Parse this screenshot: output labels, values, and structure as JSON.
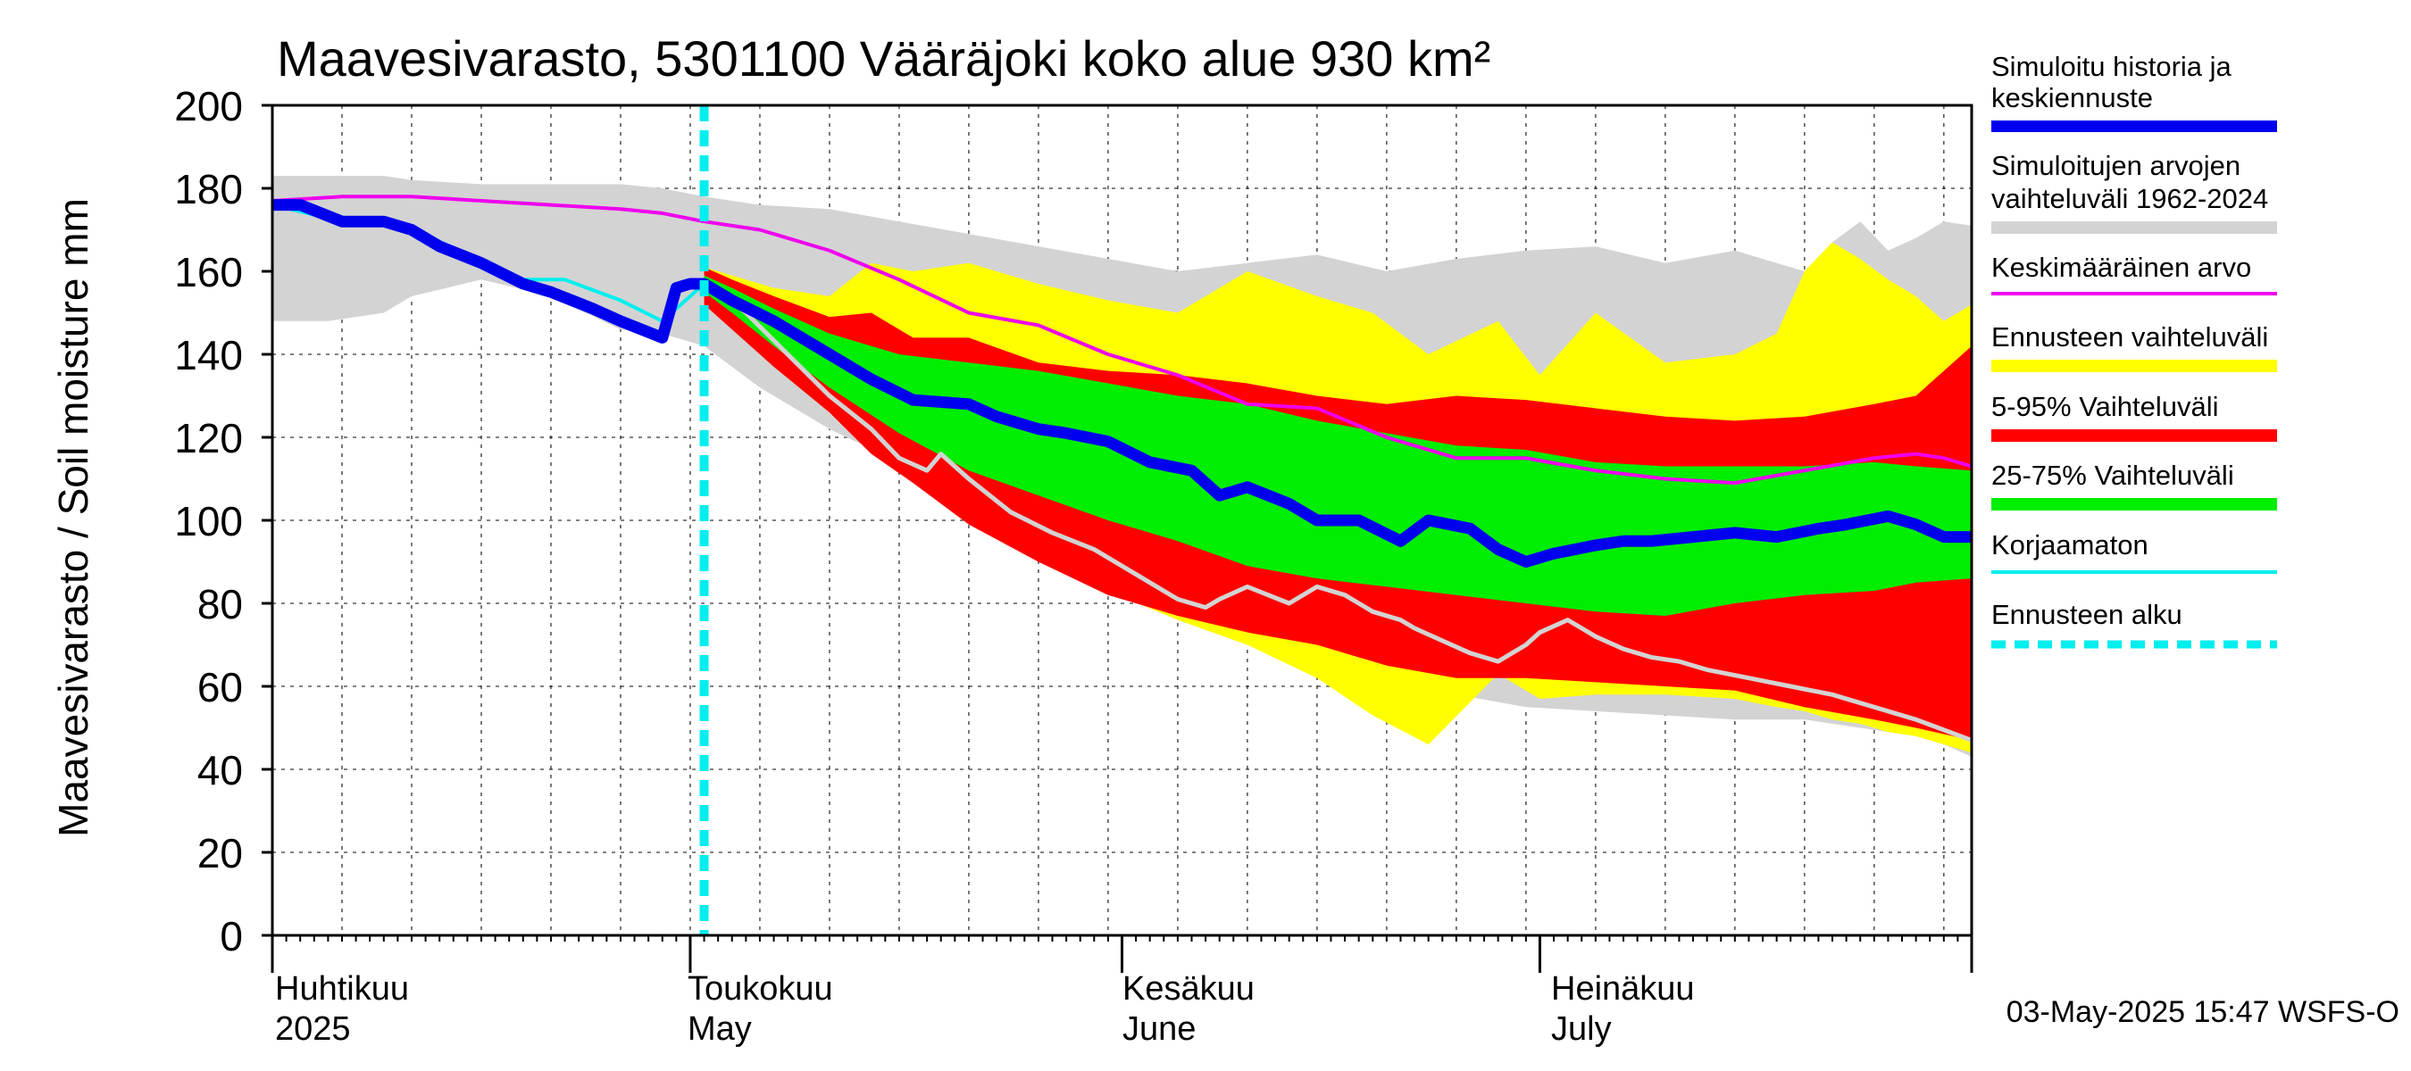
{
  "chart_data": {
    "type": "line",
    "title": "Maavesivarasto, 5301100 Vääräjoki koko alue 930 km²",
    "ylabel": "Maavesivarasto / Soil moisture   mm",
    "ylim": [
      0,
      200
    ],
    "yticks": [
      0,
      20,
      40,
      60,
      80,
      100,
      120,
      140,
      160,
      180,
      200
    ],
    "xlim_days": [
      0,
      122
    ],
    "grid": true,
    "month_labels": [
      {
        "fi": "Huhtikuu",
        "en": "2025",
        "day": 0
      },
      {
        "fi": "Toukokuu",
        "en": "May",
        "day": 30
      },
      {
        "fi": "Kesäkuu",
        "en": "June",
        "day": 61
      },
      {
        "fi": "Heinäkuu",
        "en": "July",
        "day": 91
      }
    ],
    "forecast_start_day": 31,
    "footer": "03-May-2025 15:47 WSFS-O",
    "legend": [
      {
        "label": "Simuloitu historia ja keskiennuste",
        "color": "#0000ee",
        "style": "thick"
      },
      {
        "label": "Simuloitujen arvojen vaihteluväli 1962-2024",
        "color": "#d3d3d3",
        "style": "band"
      },
      {
        "label": "Keskimääräinen arvo",
        "color": "#ee00ee",
        "style": "line"
      },
      {
        "label": "Ennusteen vaihteluväli",
        "color": "#ffff00",
        "style": "band"
      },
      {
        "label": "5-95% Vaihteluväli",
        "color": "#ff0000",
        "style": "band"
      },
      {
        "label": "25-75% Vaihteluväli",
        "color": "#00ee00",
        "style": "band"
      },
      {
        "label": "Korjaamaton",
        "color": "#00eeee",
        "style": "line"
      },
      {
        "label": "Ennusteen alku",
        "color": "#00eeee",
        "style": "dashed"
      }
    ],
    "series": {
      "hist_range": {
        "x": [
          0,
          4,
          8,
          10,
          15,
          20,
          25,
          28,
          31,
          35,
          40,
          45,
          50,
          55,
          60,
          65,
          70,
          75,
          80,
          85,
          90,
          95,
          100,
          105,
          110,
          112,
          114,
          116,
          118,
          120,
          122
        ],
        "upper": [
          183,
          183,
          183,
          182,
          181,
          181,
          181,
          180,
          178,
          176,
          175,
          172,
          169,
          166,
          163,
          160,
          162,
          164,
          160,
          163,
          165,
          166,
          162,
          165,
          160,
          167,
          172,
          165,
          168,
          172,
          171
        ],
        "lower": [
          148,
          148,
          150,
          154,
          158,
          154,
          146,
          145,
          142,
          132,
          122,
          114,
          103,
          94,
          84,
          76,
          70,
          65,
          62,
          58,
          55,
          54,
          53,
          52,
          52,
          51,
          50,
          49,
          48,
          46,
          43
        ]
      },
      "forecast_range": {
        "x": [
          31,
          33,
          36,
          40,
          43,
          46,
          50,
          55,
          60,
          65,
          70,
          75,
          79,
          83,
          88,
          91,
          95,
          100,
          105,
          108,
          110,
          112,
          114,
          116,
          118,
          120,
          122
        ],
        "upper": [
          161,
          159,
          156,
          154,
          162,
          160,
          162,
          157,
          153,
          150,
          160,
          154,
          150,
          140,
          148,
          135,
          150,
          138,
          140,
          145,
          160,
          167,
          163,
          158,
          154,
          148,
          152
        ],
        "lower": [
          155,
          148,
          139,
          128,
          118,
          112,
          104,
          93,
          83,
          76,
          70,
          62,
          53,
          46,
          63,
          57,
          58,
          58,
          57,
          55,
          54,
          52,
          51,
          49,
          48,
          46,
          44
        ]
      },
      "p5_95": {
        "x": [
          31,
          33,
          36,
          40,
          43,
          46,
          50,
          55,
          60,
          65,
          70,
          75,
          80,
          85,
          90,
          95,
          100,
          105,
          110,
          115,
          118,
          122
        ],
        "upper": [
          161,
          158,
          154,
          149,
          150,
          144,
          144,
          138,
          136,
          135,
          133,
          130,
          128,
          130,
          129,
          127,
          125,
          124,
          125,
          128,
          130,
          142
        ],
        "lower": [
          152,
          146,
          137,
          126,
          116,
          109,
          99,
          90,
          82,
          77,
          73,
          70,
          65,
          62,
          62,
          61,
          60,
          59,
          55,
          52,
          50,
          47
        ]
      },
      "p25_75": {
        "x": [
          31,
          33,
          36,
          40,
          45,
          50,
          55,
          60,
          65,
          70,
          75,
          80,
          85,
          90,
          95,
          100,
          105,
          110,
          115,
          118,
          122
        ],
        "upper": [
          159,
          156,
          151,
          145,
          140,
          138,
          136,
          133,
          130,
          128,
          124,
          121,
          118,
          117,
          114,
          113,
          113,
          113,
          114,
          113,
          112
        ],
        "lower": [
          155,
          150,
          142,
          132,
          121,
          112,
          106,
          100,
          95,
          89,
          86,
          84,
          82,
          80,
          78,
          77,
          80,
          82,
          83,
          85,
          86
        ]
      },
      "unadjusted_tail": {
        "x": [
          31,
          34,
          37,
          40,
          43,
          45,
          47,
          48,
          50,
          53,
          56,
          59,
          62,
          65,
          67,
          68,
          70,
          73,
          75,
          77,
          79,
          81,
          82,
          84,
          86,
          88,
          90,
          91,
          93,
          95,
          97,
          99,
          101,
          103,
          106,
          109,
          112,
          115,
          118,
          122
        ],
        "values": [
          158,
          150,
          140,
          130,
          122,
          115,
          112,
          116,
          110,
          102,
          97,
          93,
          87,
          81,
          79,
          81,
          84,
          80,
          84,
          82,
          78,
          76,
          74,
          71,
          68,
          66,
          70,
          73,
          76,
          72,
          69,
          67,
          66,
          64,
          62,
          60,
          58,
          55,
          52,
          47
        ]
      },
      "mean": {
        "x": [
          0,
          5,
          10,
          15,
          20,
          25,
          28,
          31,
          35,
          40,
          45,
          50,
          55,
          60,
          65,
          70,
          75,
          80,
          85,
          90,
          95,
          100,
          105,
          110,
          115,
          118,
          120,
          122
        ],
        "values": [
          177,
          178,
          178,
          177,
          176,
          175,
          174,
          172,
          170,
          165,
          158,
          150,
          147,
          140,
          135,
          128,
          127,
          120,
          115,
          115,
          112,
          110,
          109,
          112,
          115,
          116,
          115,
          113
        ]
      },
      "uncorrected": {
        "x": [
          0,
          5,
          9,
          14,
          18,
          21,
          25,
          28,
          31
        ],
        "values": [
          176,
          172,
          172,
          164,
          158,
          158,
          153,
          148,
          157
        ]
      },
      "main": {
        "x": [
          0,
          2,
          5,
          8,
          10,
          12,
          15,
          18,
          20,
          23,
          25,
          28,
          29,
          30,
          31,
          33,
          36,
          40,
          43,
          46,
          50,
          52,
          55,
          57,
          60,
          63,
          66,
          68,
          70,
          73,
          75,
          78,
          81,
          83,
          86,
          88,
          90,
          92,
          95,
          97,
          99,
          102,
          105,
          108,
          111,
          113,
          116,
          118,
          120,
          122
        ],
        "values": [
          176,
          176,
          172,
          172,
          170,
          166,
          162,
          157,
          155,
          151,
          148,
          144,
          156,
          157,
          157,
          153,
          148,
          140,
          134,
          129,
          128,
          125,
          122,
          121,
          119,
          114,
          112,
          106,
          108,
          104,
          100,
          100,
          95,
          100,
          98,
          93,
          90,
          92,
          94,
          95,
          95,
          96,
          97,
          96,
          98,
          99,
          101,
          99,
          96,
          96
        ]
      }
    }
  }
}
